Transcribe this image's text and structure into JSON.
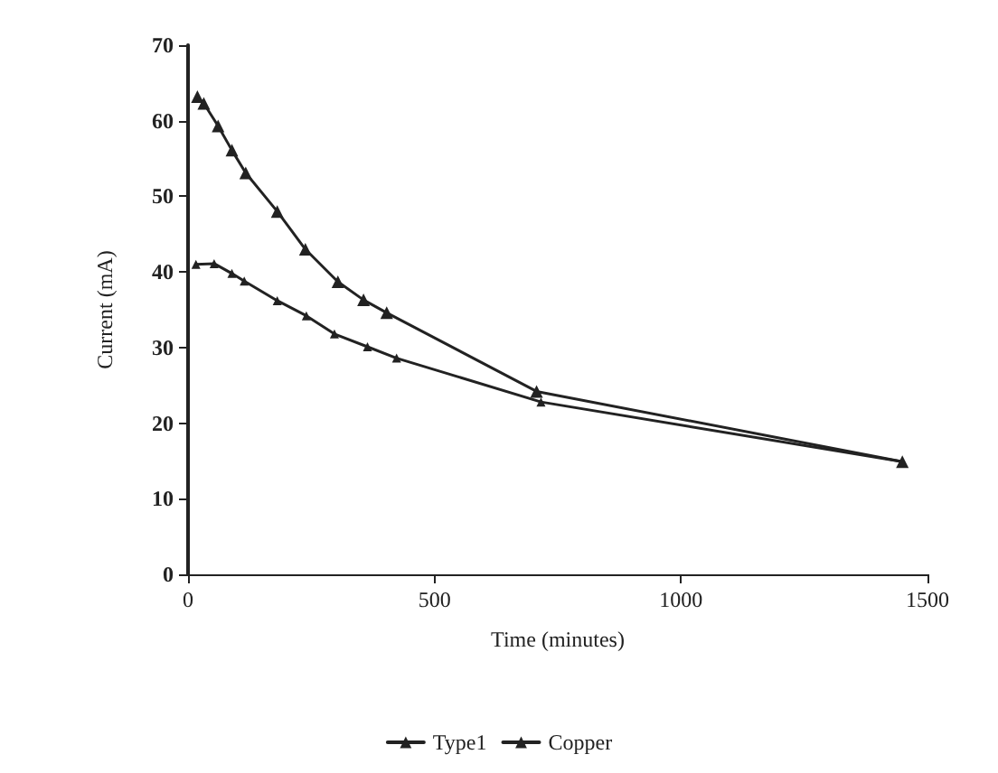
{
  "chart_data": {
    "type": "line",
    "xlabel": "Time (minutes)",
    "ylabel": "Current (mA)",
    "xlim": [
      0,
      1500
    ],
    "xticks": [
      0,
      500,
      1000,
      1500
    ],
    "ylim": [
      0,
      70
    ],
    "yticks": [
      0,
      10,
      20,
      30,
      40,
      50,
      60,
      70
    ],
    "grid": false,
    "legend": "bottom",
    "marker": "triangle",
    "line_style": "solid",
    "series": [
      {
        "name": "Type1",
        "color": "#222222",
        "x": [
          19,
          32,
          61,
          89,
          117,
          181,
          238,
          304,
          356,
          403,
          707,
          1449
        ],
        "values": [
          63.2,
          62.3,
          59.3,
          56.1,
          53.1,
          48,
          43,
          38.7,
          36.3,
          34.6,
          24.2,
          14.9
        ]
      },
      {
        "name": "Copper",
        "color": "#222222",
        "x": [
          16,
          53,
          89,
          114,
          181,
          240,
          297,
          364,
          423,
          716,
          1449
        ],
        "values": [
          41,
          41.1,
          39.8,
          38.8,
          36.2,
          34.2,
          31.8,
          30.1,
          28.6,
          22.8,
          14.9
        ]
      }
    ]
  }
}
